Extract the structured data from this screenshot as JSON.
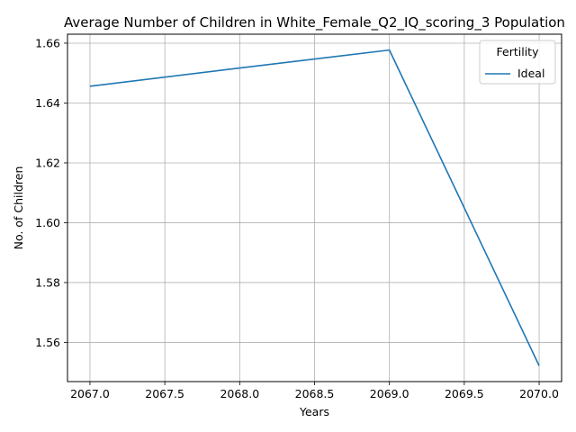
{
  "chart_data": {
    "type": "line",
    "title": "Average Number of Children in White_Female_Q2_IQ_scoring_3 Population",
    "xlabel": "Years",
    "ylabel": "No. of Children",
    "x": [
      2067,
      2068,
      2069,
      2070
    ],
    "series": [
      {
        "name": "Ideal",
        "color": "#1f77b4",
        "values": [
          1.6456,
          1.6517,
          1.6577,
          1.5522
        ]
      }
    ],
    "xlim": [
      2066.85,
      2070.15
    ],
    "ylim": [
      1.5469,
      1.663
    ],
    "xticks": [
      2067.0,
      2067.5,
      2068.0,
      2068.5,
      2069.0,
      2069.5,
      2070.0
    ],
    "xtick_labels": [
      "2067.0",
      "2067.5",
      "2068.0",
      "2068.5",
      "2069.0",
      "2069.5",
      "2070.0"
    ],
    "yticks": [
      1.56,
      1.58,
      1.6,
      1.62,
      1.64,
      1.66
    ],
    "ytick_labels": [
      "1.56",
      "1.58",
      "1.60",
      "1.62",
      "1.64",
      "1.66"
    ],
    "grid": true,
    "legend": {
      "title": "Fertility",
      "position": "top-right"
    }
  }
}
